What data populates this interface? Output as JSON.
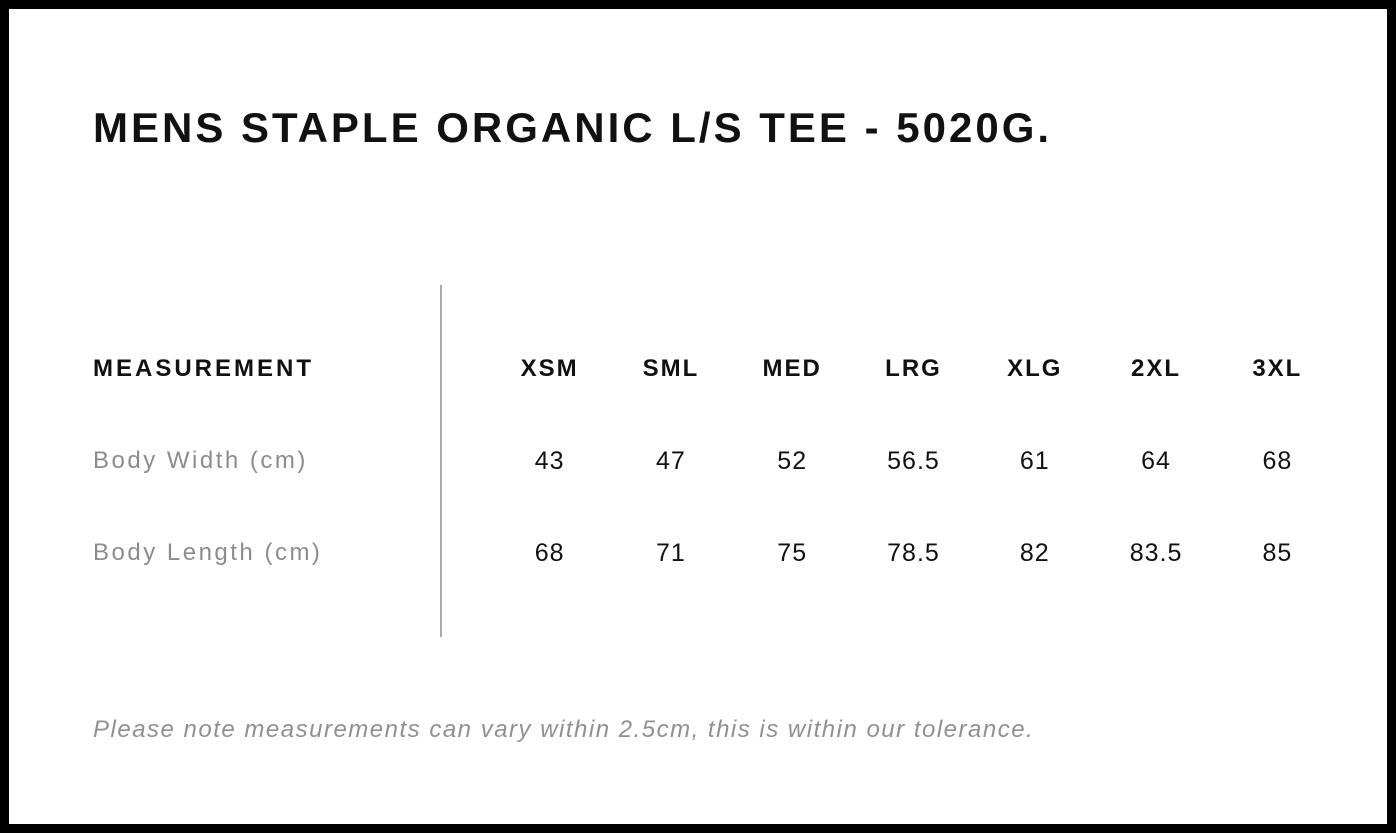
{
  "title": "MENS STAPLE ORGANIC L/S TEE - 5020G.",
  "size_chart": {
    "measurement_header": "MEASUREMENT",
    "sizes": [
      "XSM",
      "SML",
      "MED",
      "LRG",
      "XLG",
      "2XL",
      "3XL"
    ],
    "rows": [
      {
        "label": "Body Width (cm)",
        "values": [
          "43",
          "47",
          "52",
          "56.5",
          "61",
          "64",
          "68"
        ]
      },
      {
        "label": "Body Length (cm)",
        "values": [
          "68",
          "71",
          "75",
          "78.5",
          "82",
          "83.5",
          "85"
        ]
      }
    ]
  },
  "tolerance_note": "Please note measurements can vary within 2.5cm, this is within our tolerance.",
  "colors": {
    "background": "#ffffff",
    "frame": "#000000",
    "heading_text": "#111111",
    "value_text": "#111111",
    "row_label_text": "#8c8c8c",
    "note_text": "#909090",
    "divider": "#aaaaaa"
  }
}
